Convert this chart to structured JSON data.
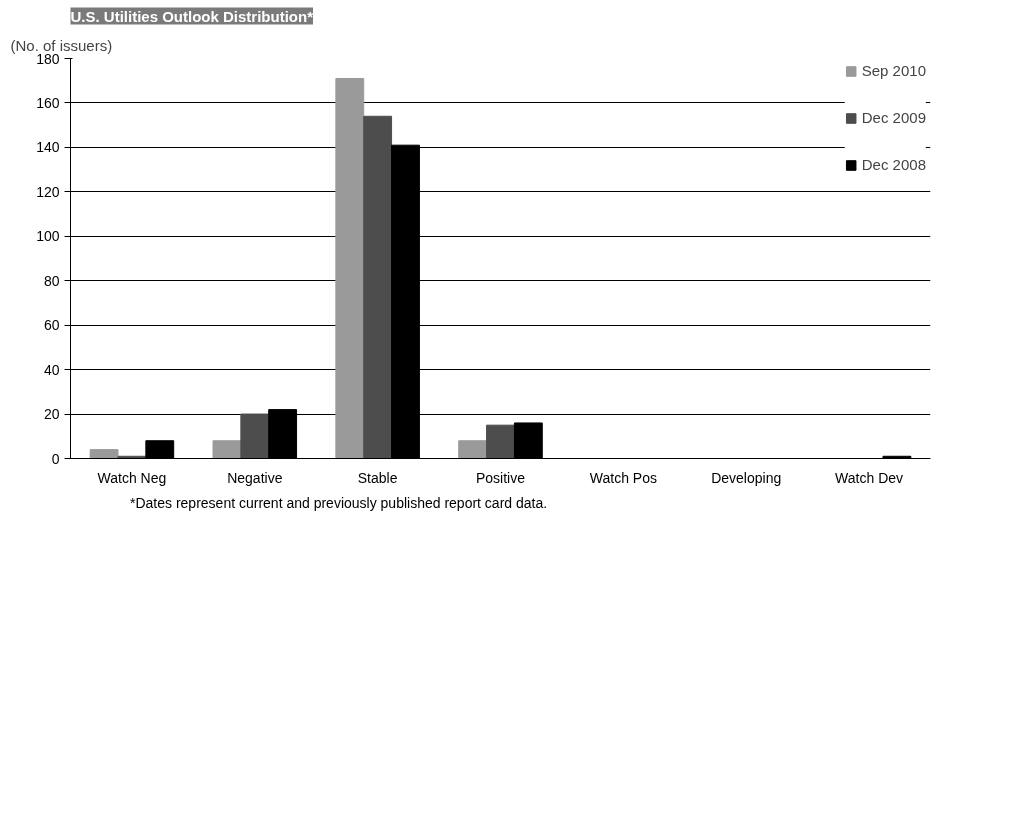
{
  "chart_data": {
    "type": "bar",
    "title": "U.S. Utilities Outlook Distribution*",
    "ylabel": "(No. of issuers)",
    "categories": [
      "Watch Neg",
      "Negative",
      "Stable",
      "Positive",
      "Watch Pos",
      "Developing",
      "Watch Dev"
    ],
    "series": [
      {
        "name": "Sep 2010",
        "color": "#9a9a9a",
        "values": [
          4,
          8,
          171,
          8,
          0,
          0,
          0
        ]
      },
      {
        "name": "Dec 2009",
        "color": "#4d4d4d",
        "values": [
          1,
          20,
          154,
          15,
          0,
          0,
          0
        ]
      },
      {
        "name": "Dec 2008",
        "color": "#000000",
        "values": [
          8,
          22,
          141,
          16,
          0,
          0,
          1
        ]
      }
    ],
    "ylim": [
      0,
      180
    ],
    "yticks": [
      0,
      20,
      40,
      60,
      80,
      100,
      120,
      140,
      160,
      180
    ],
    "grid": "y",
    "legend": "top right",
    "annotations": [
      "*Dates represent current and previously published report card data."
    ]
  }
}
